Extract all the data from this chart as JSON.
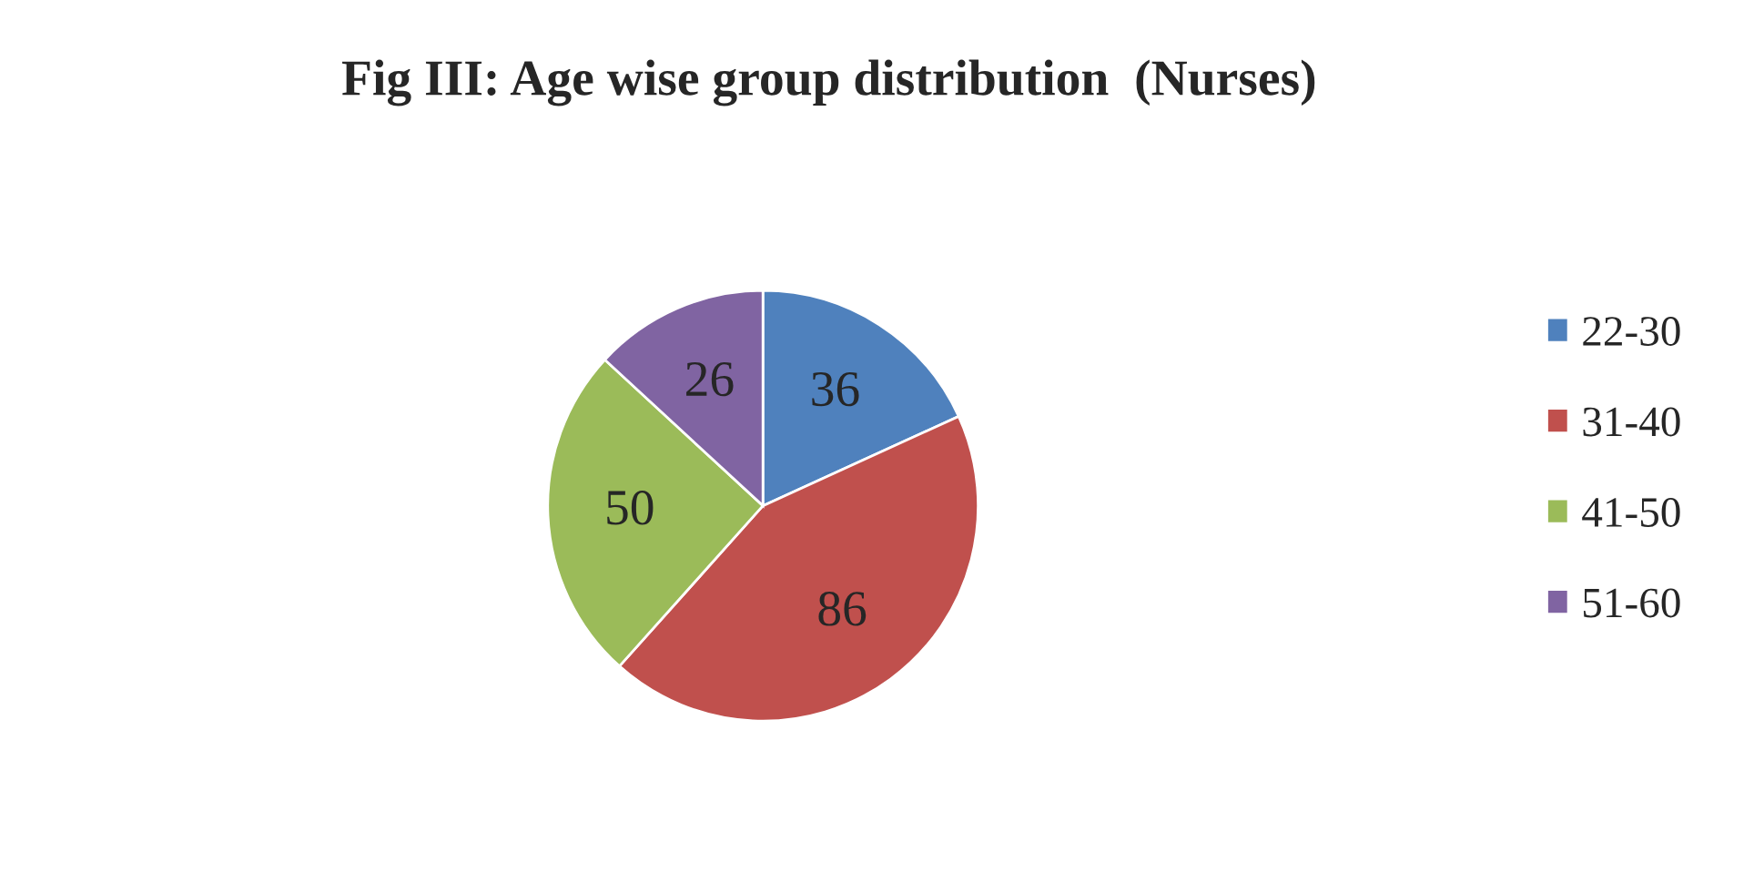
{
  "chart_data": {
    "type": "pie",
    "title": "Fig III: Age wise group distribution  (Nurses)",
    "categories": [
      "22-30",
      "31-40",
      "41-50",
      "51-60"
    ],
    "values": [
      36,
      86,
      50,
      26
    ],
    "colors": [
      "#4f81bd",
      "#c0504d",
      "#9bbb59",
      "#8064a2"
    ],
    "data_labels": true,
    "legend": "right"
  }
}
